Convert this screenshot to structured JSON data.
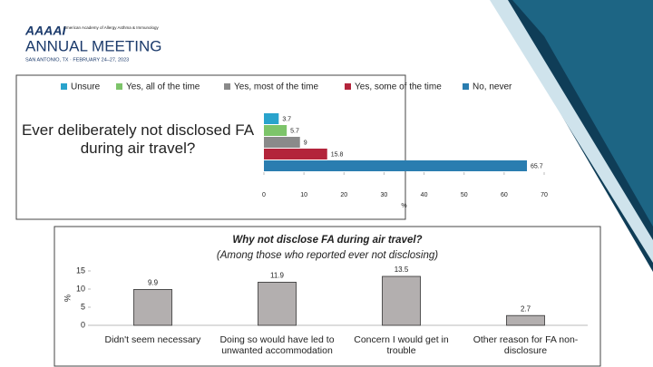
{
  "header": {
    "logo": "AAAAI",
    "organization": "American Academy of Allergy Asthma & Immunology",
    "meeting": "ANNUAL MEETING",
    "place_date": "SAN ANTONIO, TX · FEBRUARY 24–27, 2023"
  },
  "chart_data": [
    {
      "type": "hbar",
      "categories": [
        "Ever deliberately not disclosed FA during air travel?"
      ],
      "series": [
        {
          "name": "Unsure",
          "color": "#29a3cc",
          "values": [
            3.7
          ]
        },
        {
          "name": "Yes, all of the time",
          "color": "#7dc46a",
          "values": [
            5.7
          ]
        },
        {
          "name": "Yes, most of the time",
          "color": "#8a8a8a",
          "values": [
            9
          ]
        },
        {
          "name": "Yes, some of the time",
          "color": "#b3243b",
          "values": [
            15.8
          ]
        },
        {
          "name": "No, never",
          "color": "#2a7db0",
          "values": [
            65.7
          ]
        }
      ],
      "xlim": [
        0,
        70
      ],
      "xticks": [
        0,
        10,
        20,
        30,
        40,
        50,
        60,
        70
      ],
      "x_label": "%",
      "legend": "top"
    },
    {
      "type": "bar",
      "title": "Why not disclose FA during air travel?",
      "subtitle": "(Among those who reported ever not disclosing)",
      "categories": [
        "Didn't seem necessary",
        "Doing so would have led to unwanted accommodation",
        "Concern I would get in trouble",
        "Other reason for FA non-disclosure"
      ],
      "values": [
        9.9,
        11.9,
        13.5,
        2.7
      ],
      "color": "#b3afaf",
      "ylim": [
        0,
        15
      ],
      "yticks": [
        0,
        5,
        10,
        15
      ],
      "y_label": "%"
    }
  ]
}
